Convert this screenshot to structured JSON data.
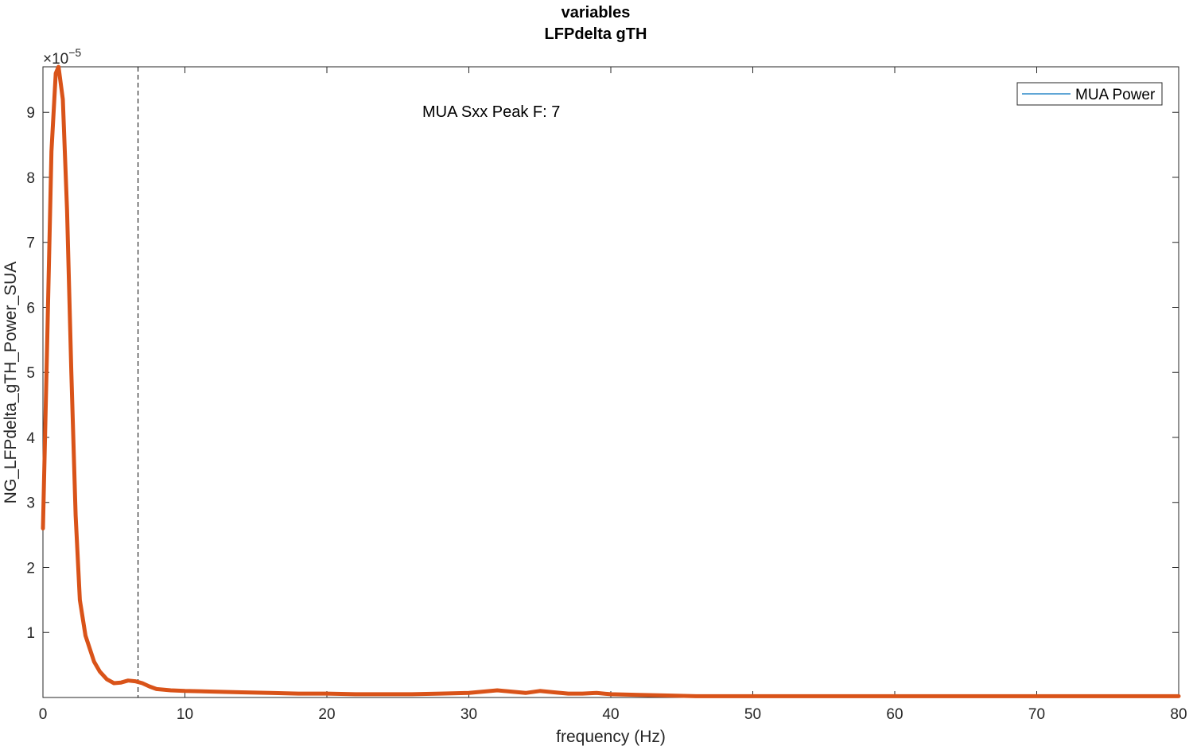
{
  "chart_data": {
    "type": "line",
    "title": "variables",
    "subtitle": "LFPdelta gTH",
    "xlabel": "frequency (Hz)",
    "ylabel": "NG_LFPdelta_gTH_Power_SUA",
    "y_exponent_label": "×10",
    "y_exponent_power": "−5",
    "xlim": [
      0,
      80
    ],
    "ylim": [
      0,
      9.7
    ],
    "x_ticks": [
      0,
      10,
      20,
      30,
      40,
      50,
      60,
      70,
      80
    ],
    "x_tick_labels": [
      "0",
      "10",
      "20",
      "30",
      "40",
      "50",
      "60",
      "70",
      "80"
    ],
    "y_ticks": [
      1,
      2,
      3,
      4,
      5,
      6,
      7,
      8,
      9
    ],
    "y_tick_labels": [
      "1",
      "2",
      "3",
      "4",
      "5",
      "6",
      "7",
      "8",
      "9"
    ],
    "grid": false,
    "legend": {
      "placement": "top-right",
      "entries": [
        {
          "label": "MUA Power",
          "color": "#0072BD"
        }
      ]
    },
    "annotation": {
      "text": "MUA Sxx Peak F: 7",
      "x": 32,
      "y": 9.0
    },
    "vline": {
      "x": 6.7,
      "style": "dashed",
      "color": "#000000"
    },
    "series": [
      {
        "color": "#D95319",
        "x": [
          0,
          0.3,
          0.6,
          0.9,
          1.1,
          1.4,
          1.7,
          2.0,
          2.3,
          2.6,
          3.0,
          3.3,
          3.6,
          4.0,
          4.5,
          5.0,
          5.5,
          6.0,
          6.5,
          7.0,
          7.5,
          8.0,
          9.0,
          10,
          12,
          14,
          16,
          18,
          20,
          22,
          24,
          26,
          28,
          30,
          31,
          32,
          33,
          34,
          35,
          36,
          37,
          38,
          39,
          40,
          42,
          44,
          46,
          48,
          50,
          55,
          60,
          65,
          70,
          75,
          80
        ],
        "values": [
          2.6,
          5.5,
          8.4,
          9.6,
          9.7,
          9.2,
          7.5,
          5.0,
          2.8,
          1.5,
          0.95,
          0.75,
          0.55,
          0.4,
          0.28,
          0.22,
          0.23,
          0.26,
          0.25,
          0.22,
          0.17,
          0.13,
          0.11,
          0.1,
          0.09,
          0.08,
          0.07,
          0.06,
          0.06,
          0.05,
          0.05,
          0.05,
          0.06,
          0.07,
          0.09,
          0.11,
          0.09,
          0.07,
          0.1,
          0.08,
          0.06,
          0.06,
          0.07,
          0.05,
          0.04,
          0.03,
          0.02,
          0.02,
          0.02,
          0.02,
          0.02,
          0.02,
          0.02,
          0.02,
          0.02
        ]
      }
    ]
  }
}
